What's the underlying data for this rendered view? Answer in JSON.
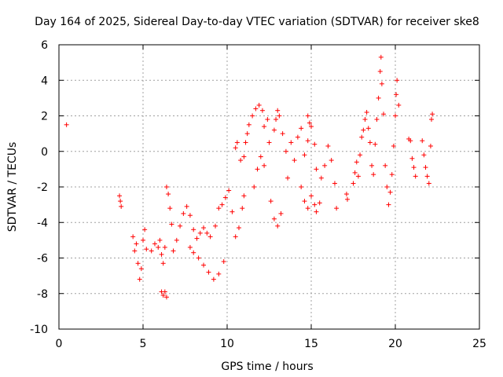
{
  "chart_data": {
    "type": "scatter",
    "title": "Day 164 of 2025, Sidereal Day-to-day VTEC variation (SDTVAR) for receiver ske8",
    "xlabel": "GPS time / hours",
    "ylabel": "SDTVAR / TECUs",
    "xlim": [
      0,
      25
    ],
    "ylim": [
      -10,
      6
    ],
    "xticks": [
      0,
      5,
      10,
      15,
      20,
      25
    ],
    "yticks": [
      -10,
      -8,
      -6,
      -4,
      -2,
      0,
      2,
      4,
      6
    ],
    "xtick_labels": [
      "0",
      "5",
      "10",
      "15",
      "20",
      "25"
    ],
    "ytick_labels": [
      "-10",
      "-8",
      "-6",
      "-4",
      "-2",
      "0",
      "2",
      "4",
      "6"
    ],
    "grid": true,
    "marker": "+",
    "color": "#ff0000",
    "series": [
      {
        "name": "SDTVAR",
        "points": [
          [
            0.45,
            1.5
          ],
          [
            3.6,
            -2.5
          ],
          [
            3.65,
            -2.8
          ],
          [
            3.7,
            -3.1
          ],
          [
            4.4,
            -4.8
          ],
          [
            4.5,
            -5.6
          ],
          [
            4.6,
            -5.2
          ],
          [
            4.7,
            -6.3
          ],
          [
            4.8,
            -7.2
          ],
          [
            4.9,
            -6.6
          ],
          [
            5.0,
            -5.0
          ],
          [
            5.1,
            -4.4
          ],
          [
            5.2,
            -5.5
          ],
          [
            5.5,
            -5.6
          ],
          [
            5.7,
            -5.2
          ],
          [
            5.9,
            -5.4
          ],
          [
            6.0,
            -5.0
          ],
          [
            6.1,
            -5.8
          ],
          [
            6.2,
            -6.3
          ],
          [
            6.3,
            -5.4
          ],
          [
            6.1,
            -7.9
          ],
          [
            6.2,
            -8.1
          ],
          [
            6.3,
            -7.9
          ],
          [
            6.4,
            -8.2
          ],
          [
            6.4,
            -2.0
          ],
          [
            6.5,
            -2.4
          ],
          [
            6.6,
            -3.2
          ],
          [
            6.7,
            -4.1
          ],
          [
            6.8,
            -5.6
          ],
          [
            7.0,
            -5.0
          ],
          [
            7.2,
            -4.2
          ],
          [
            7.4,
            -3.5
          ],
          [
            7.6,
            -3.1
          ],
          [
            7.8,
            -3.6
          ],
          [
            8.0,
            -4.4
          ],
          [
            8.2,
            -4.9
          ],
          [
            8.4,
            -4.6
          ],
          [
            8.6,
            -4.3
          ],
          [
            8.8,
            -4.6
          ],
          [
            9.0,
            -4.8
          ],
          [
            7.8,
            -5.4
          ],
          [
            8.0,
            -5.7
          ],
          [
            8.3,
            -6.0
          ],
          [
            8.6,
            -6.4
          ],
          [
            8.9,
            -6.8
          ],
          [
            9.2,
            -7.2
          ],
          [
            9.5,
            -6.9
          ],
          [
            9.8,
            -6.2
          ],
          [
            9.3,
            -4.2
          ],
          [
            9.5,
            -3.2
          ],
          [
            9.7,
            -3.0
          ],
          [
            9.9,
            -2.6
          ],
          [
            10.1,
            -2.2
          ],
          [
            10.3,
            -3.4
          ],
          [
            10.5,
            -4.8
          ],
          [
            10.7,
            -4.3
          ],
          [
            10.9,
            -3.2
          ],
          [
            11.0,
            -2.5
          ],
          [
            10.5,
            0.2
          ],
          [
            10.6,
            0.5
          ],
          [
            10.8,
            -0.5
          ],
          [
            11.0,
            -0.3
          ],
          [
            11.1,
            0.5
          ],
          [
            11.2,
            1.0
          ],
          [
            11.3,
            1.5
          ],
          [
            11.5,
            2.0
          ],
          [
            11.7,
            2.4
          ],
          [
            11.9,
            2.6
          ],
          [
            12.1,
            2.3
          ],
          [
            12.2,
            1.4
          ],
          [
            11.6,
            -2.0
          ],
          [
            11.8,
            -1.0
          ],
          [
            12.0,
            -0.3
          ],
          [
            12.2,
            -0.8
          ],
          [
            12.4,
            1.8
          ],
          [
            12.5,
            0.5
          ],
          [
            12.6,
            -2.8
          ],
          [
            12.8,
            -3.8
          ],
          [
            13.0,
            -4.2
          ],
          [
            13.2,
            -3.5
          ],
          [
            12.8,
            1.2
          ],
          [
            12.9,
            1.8
          ],
          [
            13.0,
            2.3
          ],
          [
            13.1,
            2.0
          ],
          [
            13.3,
            1.0
          ],
          [
            13.5,
            0.0
          ],
          [
            13.6,
            -1.5
          ],
          [
            13.8,
            0.5
          ],
          [
            14.0,
            -0.5
          ],
          [
            14.2,
            0.8
          ],
          [
            14.4,
            1.3
          ],
          [
            14.6,
            -0.2
          ],
          [
            14.8,
            0.6
          ],
          [
            15.0,
            1.4
          ],
          [
            15.2,
            0.4
          ],
          [
            15.3,
            -1.0
          ],
          [
            14.4,
            -2.0
          ],
          [
            14.6,
            -2.8
          ],
          [
            14.8,
            -3.2
          ],
          [
            15.0,
            -2.5
          ],
          [
            15.2,
            -3.0
          ],
          [
            15.3,
            -3.4
          ],
          [
            15.5,
            -2.9
          ],
          [
            14.8,
            2.0
          ],
          [
            14.9,
            1.6
          ],
          [
            15.6,
            -1.5
          ],
          [
            15.8,
            -0.8
          ],
          [
            16.0,
            0.3
          ],
          [
            16.2,
            -0.5
          ],
          [
            16.4,
            -1.8
          ],
          [
            16.5,
            -3.2
          ],
          [
            17.1,
            -2.4
          ],
          [
            17.15,
            -2.7
          ],
          [
            17.5,
            -1.8
          ],
          [
            17.6,
            -1.2
          ],
          [
            17.7,
            -0.6
          ],
          [
            17.8,
            -1.4
          ],
          [
            17.9,
            -0.2
          ],
          [
            18.0,
            0.8
          ],
          [
            18.1,
            1.2
          ],
          [
            18.2,
            1.8
          ],
          [
            18.3,
            2.2
          ],
          [
            18.4,
            1.3
          ],
          [
            18.5,
            0.5
          ],
          [
            18.6,
            -0.8
          ],
          [
            18.7,
            -1.3
          ],
          [
            18.8,
            0.4
          ],
          [
            18.9,
            1.8
          ],
          [
            19.0,
            3.0
          ],
          [
            19.1,
            4.5
          ],
          [
            19.15,
            5.3
          ],
          [
            19.2,
            3.8
          ],
          [
            19.3,
            2.1
          ],
          [
            19.4,
            -0.8
          ],
          [
            19.5,
            -2.0
          ],
          [
            19.6,
            -3.0
          ],
          [
            19.7,
            -2.3
          ],
          [
            19.8,
            -1.3
          ],
          [
            19.9,
            0.3
          ],
          [
            20.0,
            2.0
          ],
          [
            20.05,
            3.2
          ],
          [
            20.1,
            4.0
          ],
          [
            20.2,
            2.6
          ],
          [
            20.8,
            0.7
          ],
          [
            20.9,
            0.6
          ],
          [
            21.0,
            -0.4
          ],
          [
            21.1,
            -0.9
          ],
          [
            21.2,
            -1.4
          ],
          [
            21.6,
            0.6
          ],
          [
            21.7,
            -0.2
          ],
          [
            21.8,
            -0.9
          ],
          [
            21.9,
            -1.4
          ],
          [
            22.0,
            -1.8
          ],
          [
            22.1,
            0.3
          ],
          [
            22.15,
            1.8
          ],
          [
            22.2,
            2.1
          ]
        ]
      }
    ]
  }
}
